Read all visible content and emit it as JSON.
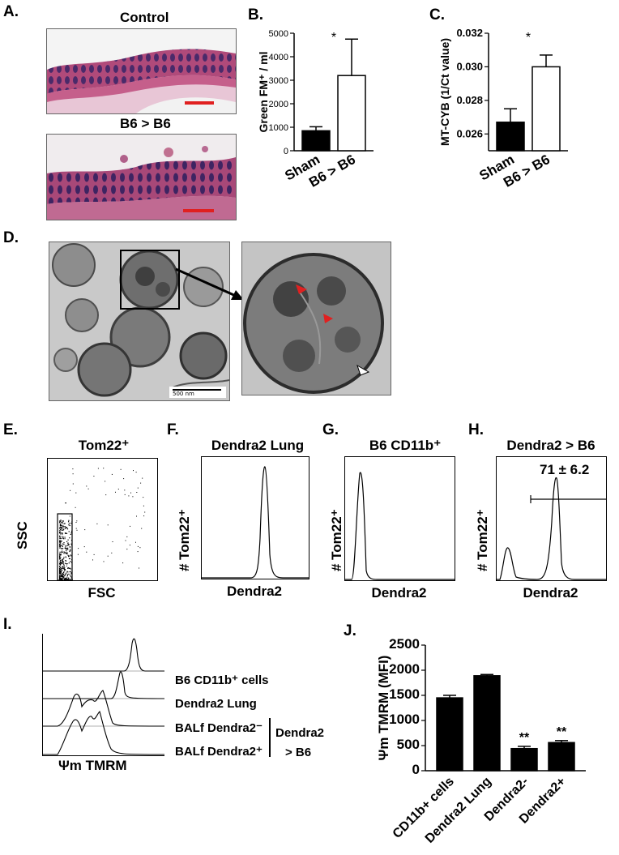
{
  "panels": {
    "A": {
      "label": "A.",
      "top_title": "Control",
      "bottom_title": "B6 > B6"
    },
    "B": {
      "label": "B.",
      "ylabel": "Green FM⁺ / ml",
      "sig": "*",
      "chart_data": {
        "type": "bar",
        "categories": [
          "Sham",
          "B6 > B6"
        ],
        "values": [
          850,
          3200
        ],
        "errors": [
          170,
          1550
        ],
        "fills": [
          "#000000",
          "#ffffff"
        ],
        "ylim": [
          0,
          5000
        ],
        "yticks": [
          "0",
          "1000",
          "2000",
          "3000",
          "4000",
          "5000"
        ],
        "ylabel": "Green FM⁺ / ml"
      }
    },
    "C": {
      "label": "C.",
      "ylabel": "MT-CYB (1/Ct value)",
      "sig": "*",
      "chart_data": {
        "type": "bar",
        "categories": [
          "Sham",
          "B6 > B6"
        ],
        "values": [
          0.0267,
          0.03
        ],
        "errors": [
          0.0008,
          0.0007
        ],
        "fills": [
          "#000000",
          "#ffffff"
        ],
        "ylim": [
          0.025,
          0.032
        ],
        "yticks": [
          "0.026",
          "0.028",
          "0.030",
          "0.032"
        ],
        "ylabel": "MT-CYB (1/Ct value)"
      }
    },
    "D": {
      "label": "D.",
      "scale_text": "500 nm"
    },
    "E": {
      "label": "E.",
      "title": "Tom22⁺",
      "ylabel": "SSC",
      "xlabel": "FSC"
    },
    "F": {
      "label": "F.",
      "title": "Dendra2 Lung",
      "ylabel": "# Tom22⁺",
      "xlabel": "Dendra2"
    },
    "G": {
      "label": "G.",
      "title": "B6 CD11b⁺",
      "ylabel": "# Tom22⁺",
      "xlabel": "Dendra2"
    },
    "H": {
      "label": "H.",
      "title": "Dendra2 > B6",
      "ylabel": "# Tom22⁺",
      "xlabel": "Dendra2",
      "gate_value": "71 ± 6.2"
    },
    "I": {
      "label": "I.",
      "xlabel": "Ψm TMRM",
      "legend": [
        "B6 CD11b⁺ cells",
        "Dendra2 Lung",
        "BALf Dendra2⁻",
        "BALf Dendra2⁺"
      ],
      "bracket_label_1": "Dendra2",
      "bracket_label_2": "> B6"
    },
    "J": {
      "label": "J.",
      "ylabel": "Ψm TMRM (MFI)",
      "chart_data": {
        "type": "bar",
        "categories": [
          "CD11b+ cells",
          "Dendra2 Lung",
          "Dendra2-",
          "Dendra2+"
        ],
        "values": [
          1450,
          1890,
          440,
          560
        ],
        "errors": [
          50,
          25,
          45,
          40
        ],
        "sig": [
          "",
          "",
          "**",
          "**"
        ],
        "ylim": [
          0,
          2500
        ],
        "yticks": [
          "0",
          "500",
          "1000",
          "1500",
          "2000",
          "2500"
        ],
        "ylabel": "Ψm TMRM (MFI)"
      }
    }
  }
}
